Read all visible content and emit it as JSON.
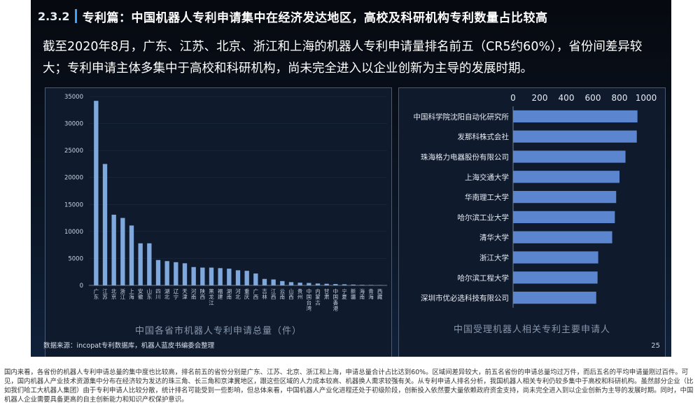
{
  "slide": {
    "section_number": "2.3.2",
    "section_title": "专利篇：中国机器人专利申请集中在经济发达地区，高校及科研机构专利数量占比较高",
    "summary": "截至2020年8月，广东、江苏、北京、浙江和上海的机器人专利申请量排名前五（CR5约60%），省份间差异较大；专利申请主体多集中于高校和科研机构，尚未完全进入以企业创新为主导的发展时期。",
    "source": "数据来源：incopat专利数据库，机器人蓝皮书编委会整理",
    "page_number": "25"
  },
  "chart_data": [
    {
      "type": "bar",
      "title": "中国各省市机器人专利申请总量（件）",
      "categories": [
        "广东",
        "江苏",
        "北京",
        "浙江",
        "上海",
        "安徽",
        "山东",
        "四川",
        "湖北",
        "辽宁",
        "天津",
        "河南",
        "陕西",
        "黑龙江",
        "福建",
        "湖南",
        "河北",
        "重庆",
        "广西",
        "吉林",
        "江西",
        "云南",
        "山西",
        "贵州",
        "中国台湾",
        "内蒙古",
        "甘肃",
        "中国香港",
        "宁夏",
        "新疆",
        "海南",
        "青海",
        "西藏"
      ],
      "values": [
        34200,
        22500,
        13100,
        12500,
        11100,
        7800,
        7800,
        4700,
        4500,
        4300,
        4100,
        3400,
        3300,
        3300,
        3200,
        3100,
        2800,
        2700,
        2200,
        1200,
        1100,
        800,
        600,
        500,
        450,
        350,
        300,
        250,
        200,
        150,
        100,
        80,
        50
      ],
      "ylim": [
        0,
        35000
      ],
      "yticks": [
        0,
        5000,
        10000,
        15000,
        20000,
        25000,
        30000,
        35000
      ],
      "bar_color": "#7fa9dd"
    },
    {
      "type": "bar",
      "orientation": "horizontal",
      "title": "中国受理机器人相关专利主要申请人",
      "categories": [
        "中国科学院沈阳自动化研究所",
        "发那科株式会社",
        "珠海格力电器股份有限公司",
        "上海交通大学",
        "华南理工大学",
        "哈尔滨工业大学",
        "清华大学",
        "浙江大学",
        "哈尔滨工程大学",
        "深圳市优必选科技有限公司"
      ],
      "values": [
        935,
        930,
        845,
        800,
        775,
        765,
        745,
        640,
        635,
        625
      ],
      "xlim": [
        0,
        1000
      ],
      "xticks": [
        0,
        200,
        400,
        600,
        800,
        1000
      ],
      "bar_color": "#5b86cf"
    }
  ],
  "note": "国内来看，各省份的机器人专利申请总量的集中度也比较高，排名前五的省份分别是广东、江苏、北京、浙江和上海，申请总量合计占比达到60%。区域间差异较大，前五名省份的申请总量均过万件，而后五名的平均申请量刚过百件。可见，国内机器人产业技术资源集中分布在经济较为发达的珠三角、长三角和京津冀地区，跟这些区域的人力成本较高、机器换人需求较强有关。从专利申请人排名分析，我国机器人相关专利仍较多集中于高校和科研机构。虽然部分企业（比如我们哈工大机器人集团）由于专利申请人比较分散，统计排名可能受到一些影响，但总体来看，中国机器人产业化进程还处于初级阶段，创新投入依然要大量依赖政府资金支持，尚未完全进入到以企业创新为主导的发展时期。同时，中国机器人企业需要具备更高的自主创新能力和知识产权保护意识。"
}
